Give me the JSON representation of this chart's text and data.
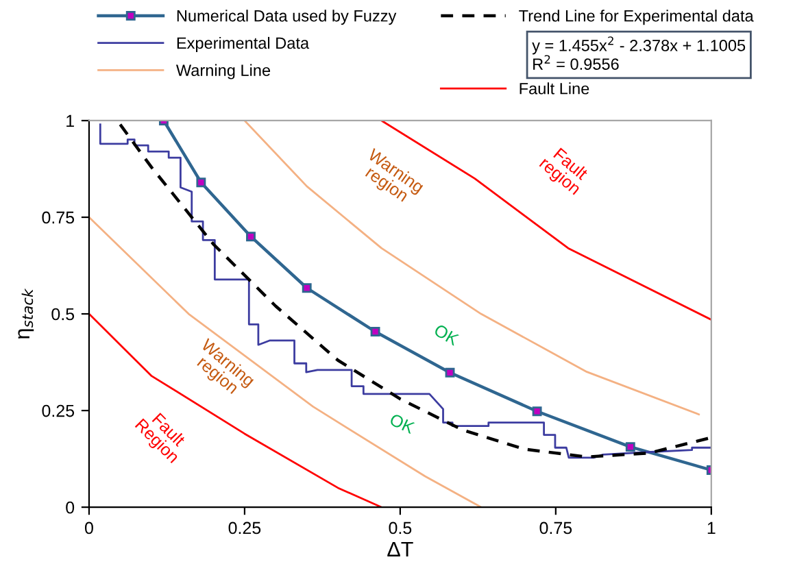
{
  "chart_data": {
    "type": "line",
    "xlabel": "ΔT",
    "ylabel": "η$_{stack}$",
    "xlim": [
      0,
      1
    ],
    "ylim": [
      0,
      1
    ],
    "xticks": [
      0,
      0.25,
      0.5,
      0.75,
      1
    ],
    "yticks": [
      0,
      0.25,
      0.5,
      0.75,
      1
    ],
    "grid": false,
    "legend": "top",
    "series": [
      {
        "name": "Numerical Data used by Fuzzy",
        "color": "#2f6690",
        "marker": "square",
        "line_style": "solid",
        "x": [
          0.12,
          0.18,
          0.26,
          0.35,
          0.46,
          0.58,
          0.72,
          0.87,
          1.0
        ],
        "values": [
          1.0,
          0.84,
          0.7,
          0.567,
          0.454,
          0.348,
          0.248,
          0.156,
          0.096
        ]
      },
      {
        "name": "Experimental Data",
        "color": "#3c3ca0",
        "line_style": "solid",
        "x": [
          0.018,
          0.018,
          0.062,
          0.062,
          0.073,
          0.073,
          0.095,
          0.095,
          0.128,
          0.128,
          0.147,
          0.147,
          0.165,
          0.165,
          0.183,
          0.183,
          0.202,
          0.202,
          0.257,
          0.257,
          0.272,
          0.272,
          0.29,
          0.33,
          0.33,
          0.349,
          0.349,
          0.367,
          0.422,
          0.422,
          0.441,
          0.441,
          0.547,
          0.569,
          0.569,
          0.584,
          0.584,
          0.642,
          0.642,
          0.731,
          0.731,
          0.749,
          0.749,
          0.767,
          0.771,
          0.811,
          0.826,
          0.892,
          0.969,
          0.969,
          1.0
        ],
        "values": [
          0.99,
          0.94,
          0.94,
          0.951,
          0.951,
          0.936,
          0.936,
          0.92,
          0.92,
          0.904,
          0.904,
          0.827,
          0.816,
          0.739,
          0.739,
          0.691,
          0.691,
          0.589,
          0.589,
          0.473,
          0.473,
          0.42,
          0.431,
          0.431,
          0.372,
          0.372,
          0.349,
          0.355,
          0.355,
          0.313,
          0.313,
          0.293,
          0.293,
          0.254,
          0.219,
          0.219,
          0.21,
          0.21,
          0.219,
          0.219,
          0.187,
          0.187,
          0.154,
          0.154,
          0.128,
          0.128,
          0.136,
          0.142,
          0.148,
          0.154,
          0.154
        ]
      },
      {
        "name": "Warning Line",
        "color": "#f4b183",
        "line_style": "solid",
        "x": [
          0,
          0.16,
          0.36,
          0.54,
          0.63
        ],
        "values": [
          0.75,
          0.5,
          0.26,
          0.08,
          0
        ]
      },
      {
        "color": "#f4b183",
        "line_style": "solid",
        "x": [
          0.25,
          0.35,
          0.47,
          0.63,
          0.8,
          0.98
        ],
        "values": [
          1.0,
          0.83,
          0.67,
          0.5,
          0.35,
          0.24
        ]
      },
      {
        "name": "Trend Line for Experimental data",
        "color": "#000000",
        "line_style": "dashed",
        "x": [
          0.05,
          0.1,
          0.2,
          0.3,
          0.4,
          0.5,
          0.6,
          0.7,
          0.8,
          0.9,
          1.0
        ],
        "values": [
          0.99,
          0.88,
          0.68,
          0.52,
          0.38,
          0.28,
          0.2,
          0.15,
          0.13,
          0.14,
          0.18
        ]
      },
      {
        "name": "Fault Line",
        "color": "#ff0000",
        "line_style": "solid",
        "x": [
          0,
          0.1,
          0.25,
          0.4,
          0.47
        ],
        "values": [
          0.5,
          0.34,
          0.19,
          0.05,
          0
        ]
      },
      {
        "color": "#ff0000",
        "line_style": "solid",
        "x": [
          0.47,
          0.62,
          0.77,
          1.0
        ],
        "values": [
          1.0,
          0.85,
          0.67,
          0.485
        ]
      }
    ],
    "annotations": [
      "y = 1.455x$^{2}$ - 2.378x + 1.1005\nR$^{2}$ = 0.9556",
      "Warning\nregion",
      "Fault\nregion",
      "OK",
      "OK",
      "Warning\nregion",
      "Fault\nRegion"
    ]
  }
}
